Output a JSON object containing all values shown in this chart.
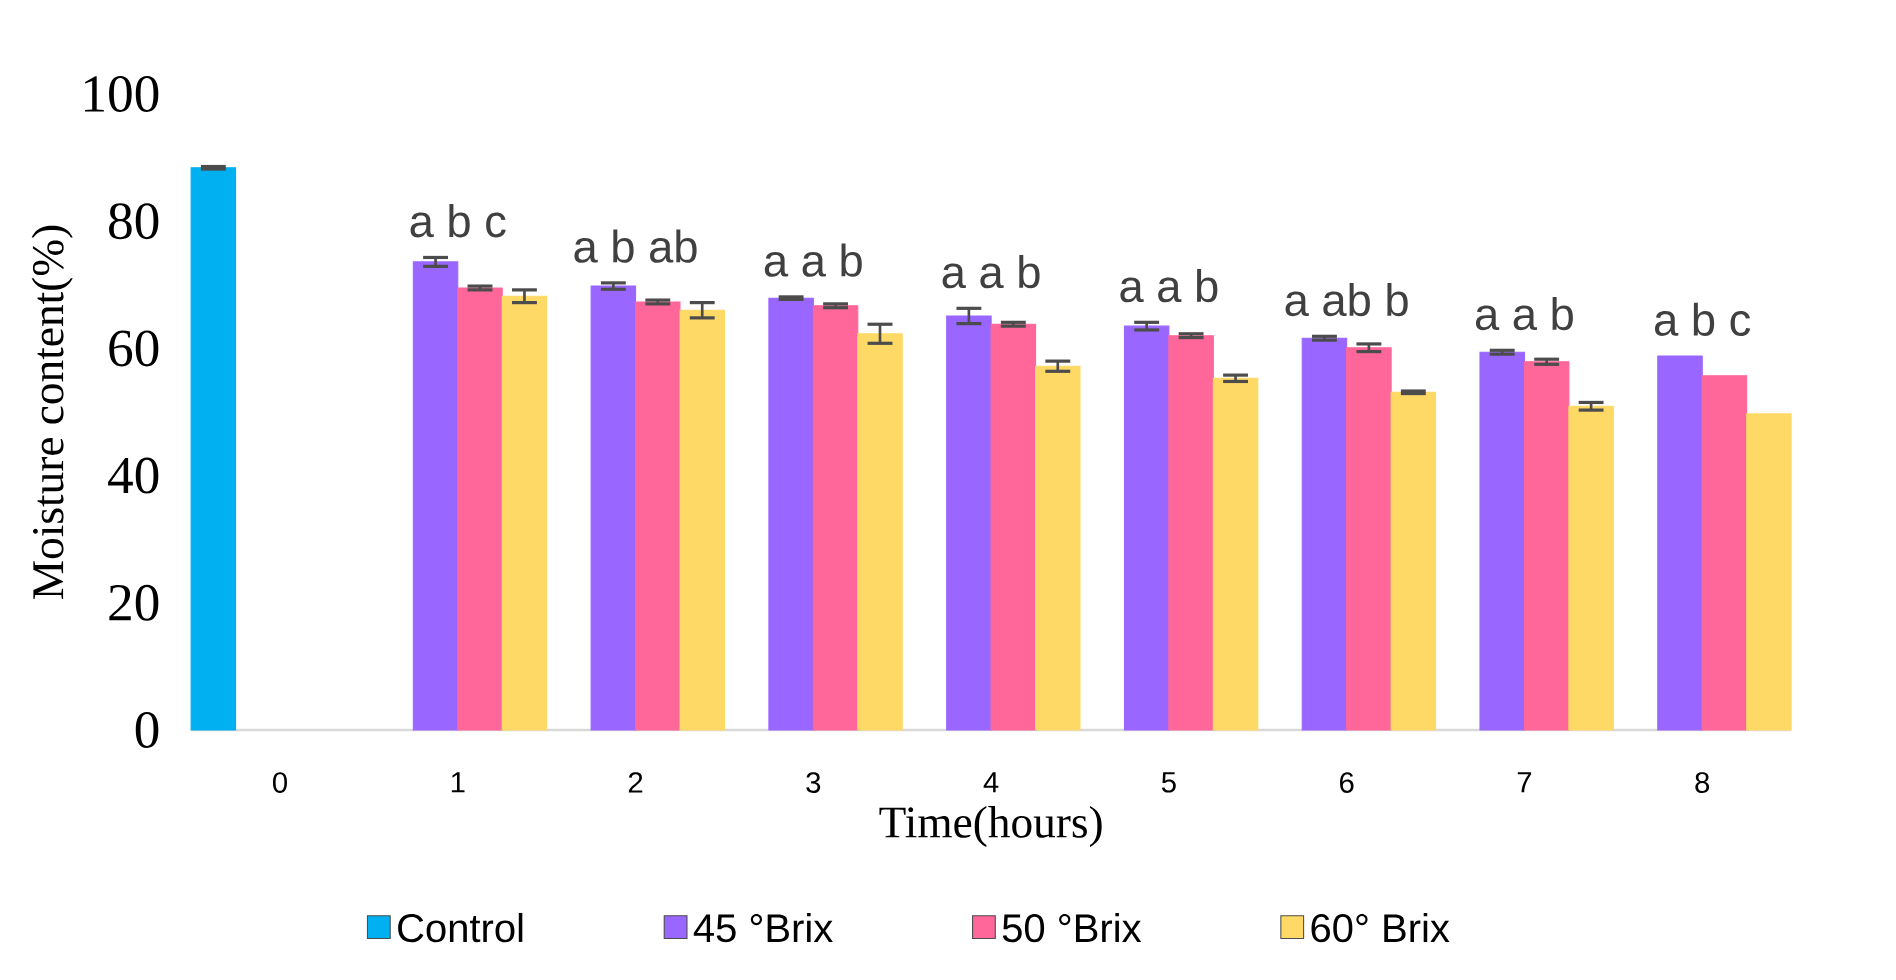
{
  "chart_data": {
    "type": "bar",
    "xlabel": "Time(hours)",
    "ylabel": "Moisture content(%)",
    "categories": [
      "0",
      "1",
      "2",
      "3",
      "4",
      "5",
      "6",
      "7",
      "8"
    ],
    "series": [
      {
        "name": "Control",
        "color": "#00b0f0",
        "values": [
          88.4,
          null,
          null,
          null,
          null,
          null,
          null,
          null,
          null
        ],
        "errors": [
          0.2,
          null,
          null,
          null,
          null,
          null,
          null,
          null,
          null
        ]
      },
      {
        "name": "45 °Brix",
        "color": "#9966ff",
        "values": [
          null,
          73.6,
          69.8,
          67.9,
          65.1,
          63.5,
          61.6,
          59.4,
          58.8
        ],
        "errors": [
          null,
          0.7,
          0.5,
          0.2,
          1.2,
          0.6,
          0.3,
          0.3,
          null
        ]
      },
      {
        "name": "50 °Brix",
        "color": "#ff6699",
        "values": [
          null,
          69.5,
          67.3,
          66.7,
          63.8,
          62.0,
          60.1,
          57.9,
          55.7
        ],
        "errors": [
          null,
          0.3,
          0.3,
          0.3,
          0.3,
          0.3,
          0.6,
          0.4,
          null
        ]
      },
      {
        "name": "60° Brix",
        "color": "#ffd966",
        "values": [
          null,
          68.2,
          66.0,
          62.3,
          57.2,
          55.3,
          53.1,
          50.9,
          49.7
        ],
        "errors": [
          null,
          1.0,
          1.2,
          1.5,
          0.8,
          0.5,
          0.2,
          0.6,
          null
        ]
      }
    ],
    "annotations": [
      "a b c",
      "a b ab",
      "a a b",
      "a a b",
      "a a b",
      "a ab b",
      "a a b",
      "a b c"
    ],
    "ylim": [
      0,
      100
    ],
    "yticks": [
      0,
      20,
      40,
      60,
      80,
      100
    ],
    "grid": false,
    "legend": "bottom"
  }
}
